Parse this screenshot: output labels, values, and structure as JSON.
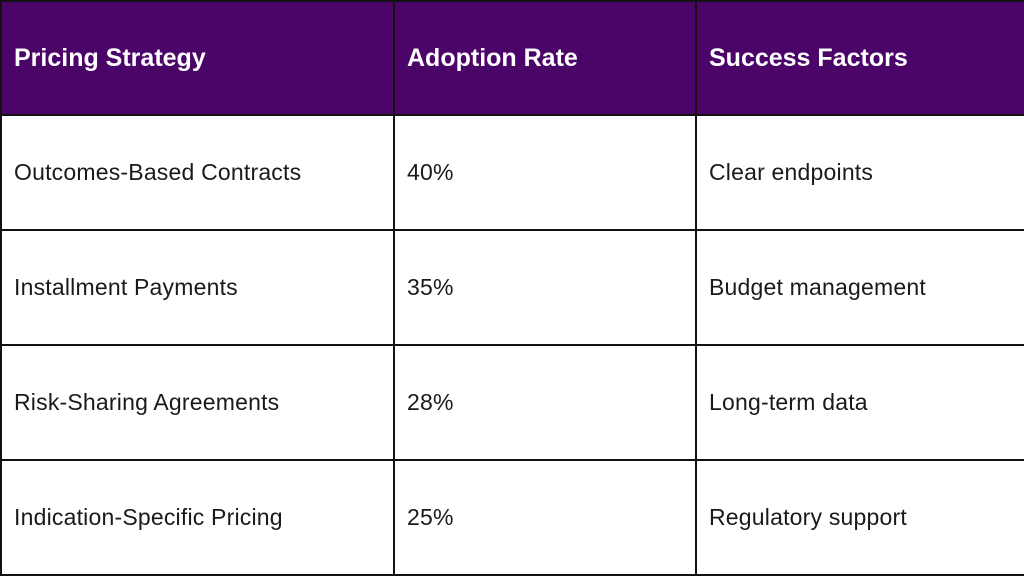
{
  "table": {
    "headers": [
      "Pricing Strategy",
      "Adoption Rate",
      "Success Factors"
    ],
    "rows": [
      [
        "Outcomes-Based Contracts",
        "40%",
        "Clear endpoints"
      ],
      [
        "Installment Payments",
        "35%",
        "Budget management"
      ],
      [
        "Risk-Sharing Agreements",
        "28%",
        "Long-term data"
      ],
      [
        "Indication-Specific Pricing",
        "25%",
        "Regulatory support"
      ]
    ]
  },
  "colors": {
    "header_background": "#4b0569",
    "header_text": "#ffffff",
    "border": "#111111",
    "body_text": "#1a1a1a"
  }
}
